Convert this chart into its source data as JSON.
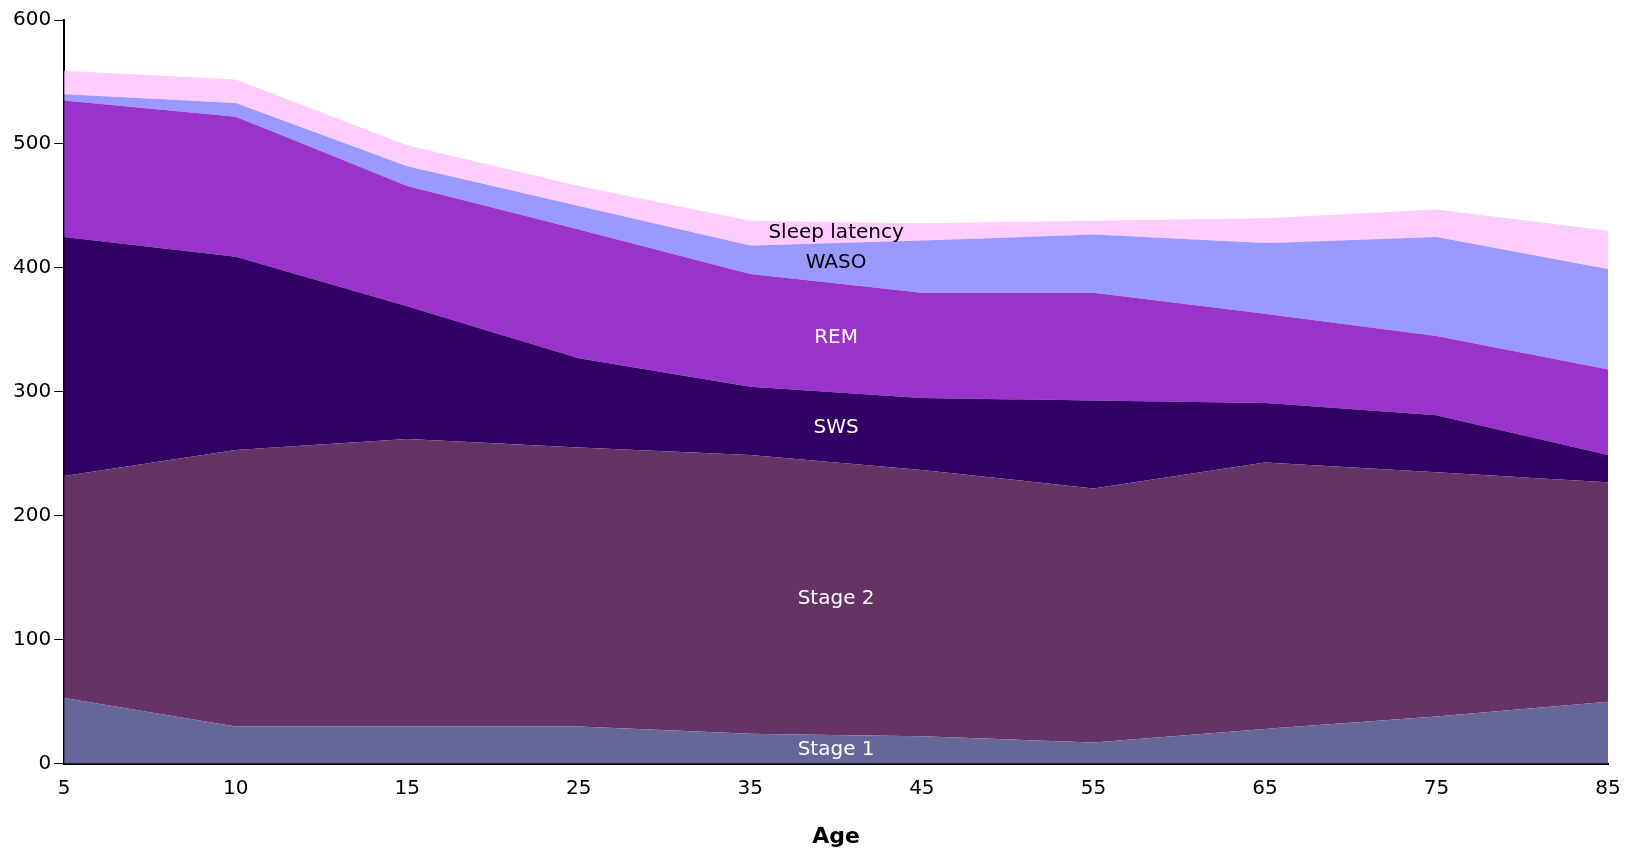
{
  "chart_data": {
    "type": "area",
    "stacked": true,
    "xlabel": "Age",
    "categories": [
      "5",
      "10",
      "15",
      "25",
      "35",
      "45",
      "55",
      "65",
      "75",
      "85"
    ],
    "ylim": [
      0,
      600
    ],
    "yticks": [
      0,
      100,
      200,
      300,
      400,
      500,
      600
    ],
    "grid": false,
    "legend": false,
    "series": [
      {
        "name": "Stage 1",
        "color": "#666699",
        "values": [
          53,
          30,
          30,
          30,
          24,
          22,
          17,
          28,
          38,
          50
        ]
      },
      {
        "name": "Stage 2",
        "color": "#663366",
        "values": [
          179,
          223,
          232,
          225,
          225,
          215,
          205,
          215,
          197,
          177
        ]
      },
      {
        "name": "SWS",
        "color": "#330066",
        "values": [
          193,
          156,
          107,
          72,
          55,
          58,
          71,
          48,
          46,
          22
        ]
      },
      {
        "name": "REM",
        "color": "#9933cc",
        "values": [
          110,
          113,
          97,
          104,
          91,
          85,
          87,
          72,
          64,
          69
        ]
      },
      {
        "name": "WASO",
        "color": "#9999ff",
        "values": [
          5,
          11,
          16,
          19,
          23,
          42,
          47,
          57,
          80,
          81
        ]
      },
      {
        "name": "Sleep latency",
        "color": "#ffccff",
        "values": [
          19,
          19,
          17,
          16,
          20,
          14,
          11,
          20,
          22,
          31
        ]
      }
    ]
  }
}
